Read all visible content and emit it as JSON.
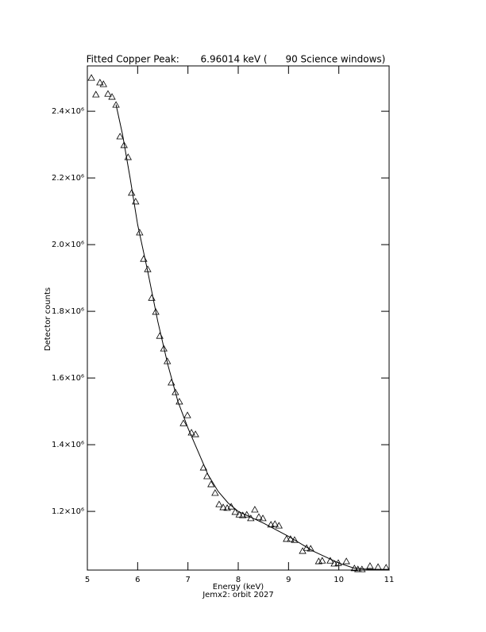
{
  "chart_data": {
    "type": "scatter",
    "title": "Fitted Copper Peak:       6.96014 keV (      90 Science windows)",
    "x_label": "Energy (keV)",
    "subtitle": "Jemx2: orbit 2027",
    "y_label": "Detector counts",
    "xlim": [
      5,
      11
    ],
    "xticks": [
      5,
      6,
      7,
      8,
      9,
      10,
      11
    ],
    "ylim": [
      1024000,
      2536000
    ],
    "yticks": [
      {
        "value": 1200000,
        "label": "1.2×10⁶"
      },
      {
        "value": 1400000,
        "label": "1.4×10⁶"
      },
      {
        "value": 1600000,
        "label": "1.6×10⁶"
      },
      {
        "value": 1800000,
        "label": "1.8×10⁶"
      },
      {
        "value": 2000000,
        "label": "2.0×10⁶"
      },
      {
        "value": 2200000,
        "label": "2.2×10⁶"
      },
      {
        "value": 2400000,
        "label": "2.4×10⁶"
      }
    ],
    "series": [
      {
        "marker": "triangle",
        "color": "#000000",
        "x": [
          5.08,
          5.17,
          5.25,
          5.32,
          5.41,
          5.49,
          5.57,
          5.65,
          5.73,
          5.81,
          5.88,
          5.96,
          6.04,
          6.12,
          6.2,
          6.28,
          6.36,
          6.44,
          6.52,
          6.59,
          6.67,
          6.75,
          6.83,
          6.91,
          6.99,
          7.07,
          7.15,
          7.31,
          7.38,
          7.46,
          7.54,
          7.62,
          7.7,
          7.78,
          7.86,
          7.94,
          8.02,
          8.09,
          8.17,
          8.25,
          8.33,
          8.41,
          8.49,
          8.65,
          8.73,
          8.81,
          8.96,
          9.04,
          9.12,
          9.28,
          9.36,
          9.44,
          9.6,
          9.67,
          9.83,
          9.91,
          9.99,
          10.15,
          10.31,
          10.38,
          10.46,
          10.62,
          10.78,
          10.94
        ],
        "values": [
          2500000,
          2450000,
          2486000,
          2481000,
          2452000,
          2443000,
          2419000,
          2324000,
          2298000,
          2262000,
          2155000,
          2129000,
          2036000,
          1957000,
          1926000,
          1840000,
          1798000,
          1726000,
          1688000,
          1650000,
          1586000,
          1557000,
          1529000,
          1464000,
          1488000,
          1436000,
          1431000,
          1331000,
          1305000,
          1281000,
          1255000,
          1221000,
          1212000,
          1210000,
          1214000,
          1198000,
          1190000,
          1188000,
          1190000,
          1179000,
          1205000,
          1183000,
          1179000,
          1160000,
          1162000,
          1157000,
          1117000,
          1117000,
          1114000,
          1081000,
          1090000,
          1088000,
          1050000,
          1052000,
          1052000,
          1043000,
          1045000,
          1050000,
          1029000,
          1026000,
          1026000,
          1036000,
          1033000,
          1031000
        ]
      },
      {
        "style": "line",
        "color": "#000000",
        "x": [
          5.57,
          5.7,
          5.85,
          6.0,
          6.2,
          6.4,
          6.6,
          6.8,
          7.0,
          7.2,
          7.4,
          7.6,
          7.8,
          8.0,
          8.5,
          9.0,
          9.5,
          10.0,
          10.3,
          10.6,
          11.0
        ],
        "values": [
          2420000,
          2330000,
          2200000,
          2060000,
          1920000,
          1770000,
          1640000,
          1530000,
          1450000,
          1380000,
          1310000,
          1260000,
          1225000,
          1200000,
          1165000,
          1125000,
          1080000,
          1045000,
          1030000,
          1026000,
          1026000
        ]
      }
    ]
  }
}
